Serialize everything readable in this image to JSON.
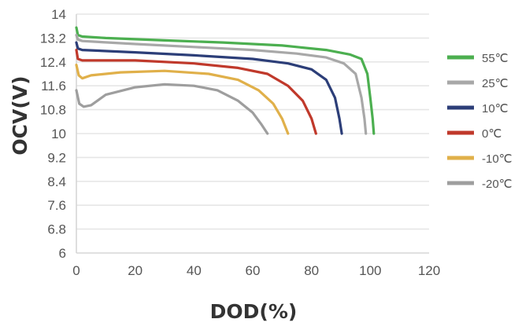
{
  "chart_data": {
    "type": "line",
    "title": "",
    "xlabel": "DOD(%)",
    "ylabel": "OCV(V)",
    "xlim": [
      0,
      120
    ],
    "ylim": [
      6,
      14
    ],
    "x_ticks": [
      "0",
      "20",
      "40",
      "60",
      "80",
      "100",
      "120"
    ],
    "y_ticks": [
      "6",
      "6.8",
      "7.6",
      "8.4",
      "9.2",
      "10",
      "10.8",
      "11.6",
      "12.4",
      "13.2",
      "14"
    ],
    "y_tick_values": [
      6,
      6.8,
      7.6,
      8.4,
      9.2,
      10,
      10.8,
      11.6,
      12.4,
      13.2,
      14
    ],
    "x_tick_values": [
      0,
      20,
      40,
      60,
      80,
      100,
      120
    ],
    "grid": "horizontal",
    "legend_position": "right",
    "series": [
      {
        "name": "55℃",
        "color": "#4caf50",
        "points": [
          [
            0,
            13.55
          ],
          [
            0.5,
            13.3
          ],
          [
            2,
            13.25
          ],
          [
            10,
            13.2
          ],
          [
            30,
            13.12
          ],
          [
            50,
            13.05
          ],
          [
            70,
            12.95
          ],
          [
            85,
            12.8
          ],
          [
            93,
            12.65
          ],
          [
            97,
            12.5
          ],
          [
            99,
            12.0
          ],
          [
            100,
            11.2
          ],
          [
            100.8,
            10.5
          ],
          [
            101.2,
            10.0
          ]
        ]
      },
      {
        "name": "25℃",
        "color": "#a8a8a8",
        "points": [
          [
            0,
            13.3
          ],
          [
            0.5,
            13.15
          ],
          [
            2,
            13.1
          ],
          [
            20,
            13.0
          ],
          [
            40,
            12.9
          ],
          [
            60,
            12.8
          ],
          [
            75,
            12.68
          ],
          [
            85,
            12.55
          ],
          [
            91,
            12.35
          ],
          [
            95,
            12.0
          ],
          [
            97,
            11.2
          ],
          [
            98,
            10.5
          ],
          [
            98.5,
            10.0
          ]
        ]
      },
      {
        "name": "10℃",
        "color": "#2c3e78",
        "points": [
          [
            0,
            13.05
          ],
          [
            0.5,
            12.85
          ],
          [
            2,
            12.8
          ],
          [
            20,
            12.72
          ],
          [
            40,
            12.62
          ],
          [
            60,
            12.5
          ],
          [
            72,
            12.35
          ],
          [
            80,
            12.15
          ],
          [
            85,
            11.8
          ],
          [
            88,
            11.2
          ],
          [
            89.5,
            10.5
          ],
          [
            90.3,
            10.0
          ]
        ]
      },
      {
        "name": "0℃",
        "color": "#c0392b",
        "points": [
          [
            0,
            12.8
          ],
          [
            0.5,
            12.5
          ],
          [
            2,
            12.45
          ],
          [
            20,
            12.45
          ],
          [
            40,
            12.35
          ],
          [
            55,
            12.2
          ],
          [
            65,
            12.0
          ],
          [
            72,
            11.6
          ],
          [
            77,
            11.1
          ],
          [
            80,
            10.5
          ],
          [
            81.5,
            10.0
          ]
        ]
      },
      {
        "name": "-10℃",
        "color": "#e0b04a",
        "points": [
          [
            0,
            12.3
          ],
          [
            0.8,
            11.95
          ],
          [
            2,
            11.85
          ],
          [
            5,
            11.95
          ],
          [
            15,
            12.05
          ],
          [
            30,
            12.1
          ],
          [
            45,
            12.0
          ],
          [
            55,
            11.8
          ],
          [
            62,
            11.45
          ],
          [
            67,
            11.0
          ],
          [
            70,
            10.5
          ],
          [
            72,
            10.0
          ]
        ]
      },
      {
        "name": "-20℃",
        "color": "#9e9e9e",
        "points": [
          [
            0,
            11.45
          ],
          [
            1,
            11.0
          ],
          [
            2.5,
            10.9
          ],
          [
            5,
            10.95
          ],
          [
            10,
            11.3
          ],
          [
            20,
            11.55
          ],
          [
            30,
            11.65
          ],
          [
            40,
            11.6
          ],
          [
            48,
            11.45
          ],
          [
            55,
            11.1
          ],
          [
            60,
            10.7
          ],
          [
            63,
            10.3
          ],
          [
            65,
            10.0
          ]
        ]
      }
    ]
  }
}
